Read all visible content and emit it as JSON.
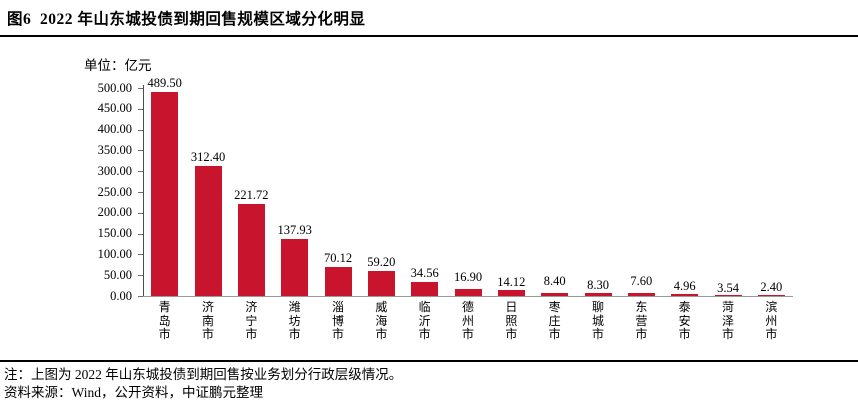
{
  "title": "图6  2022 年山东城投债到期回售规模区域分化明显",
  "chart_data": {
    "type": "bar",
    "unit_label": "单位：亿元",
    "categories": [
      "青岛市",
      "济南市",
      "济宁市",
      "潍坊市",
      "淄博市",
      "威海市",
      "临沂市",
      "德州市",
      "日照市",
      "枣庄市",
      "聊城市",
      "东营市",
      "泰安市",
      "菏泽市",
      "滨州市"
    ],
    "values": [
      489.5,
      312.4,
      221.72,
      137.93,
      70.12,
      59.2,
      34.56,
      16.9,
      14.12,
      8.4,
      8.3,
      7.6,
      4.96,
      3.54,
      2.4
    ],
    "value_labels": [
      "489.50",
      "312.40",
      "221.72",
      "137.93",
      "70.12",
      "59.20",
      "34.56",
      "16.90",
      "14.12",
      "8.40",
      "8.30",
      "7.60",
      "4.96",
      "3.54",
      "2.40"
    ],
    "ytick_labels": [
      "0.00",
      "50.00",
      "100.00",
      "150.00",
      "200.00",
      "250.00",
      "300.00",
      "350.00",
      "400.00",
      "450.00",
      "500.00"
    ],
    "ylim": [
      0,
      500
    ],
    "grid": false,
    "legend": "none",
    "bar_color": "#C9142E",
    "axis_line_color": "#4d4d4d",
    "baseline_color": "#9a9a9a"
  },
  "notes": {
    "note": "注：上图为 2022 年山东城投债到期回售按业务划分行政层级情况。",
    "source": "资料来源：Wind，公开资料，中证鹏元整理"
  }
}
